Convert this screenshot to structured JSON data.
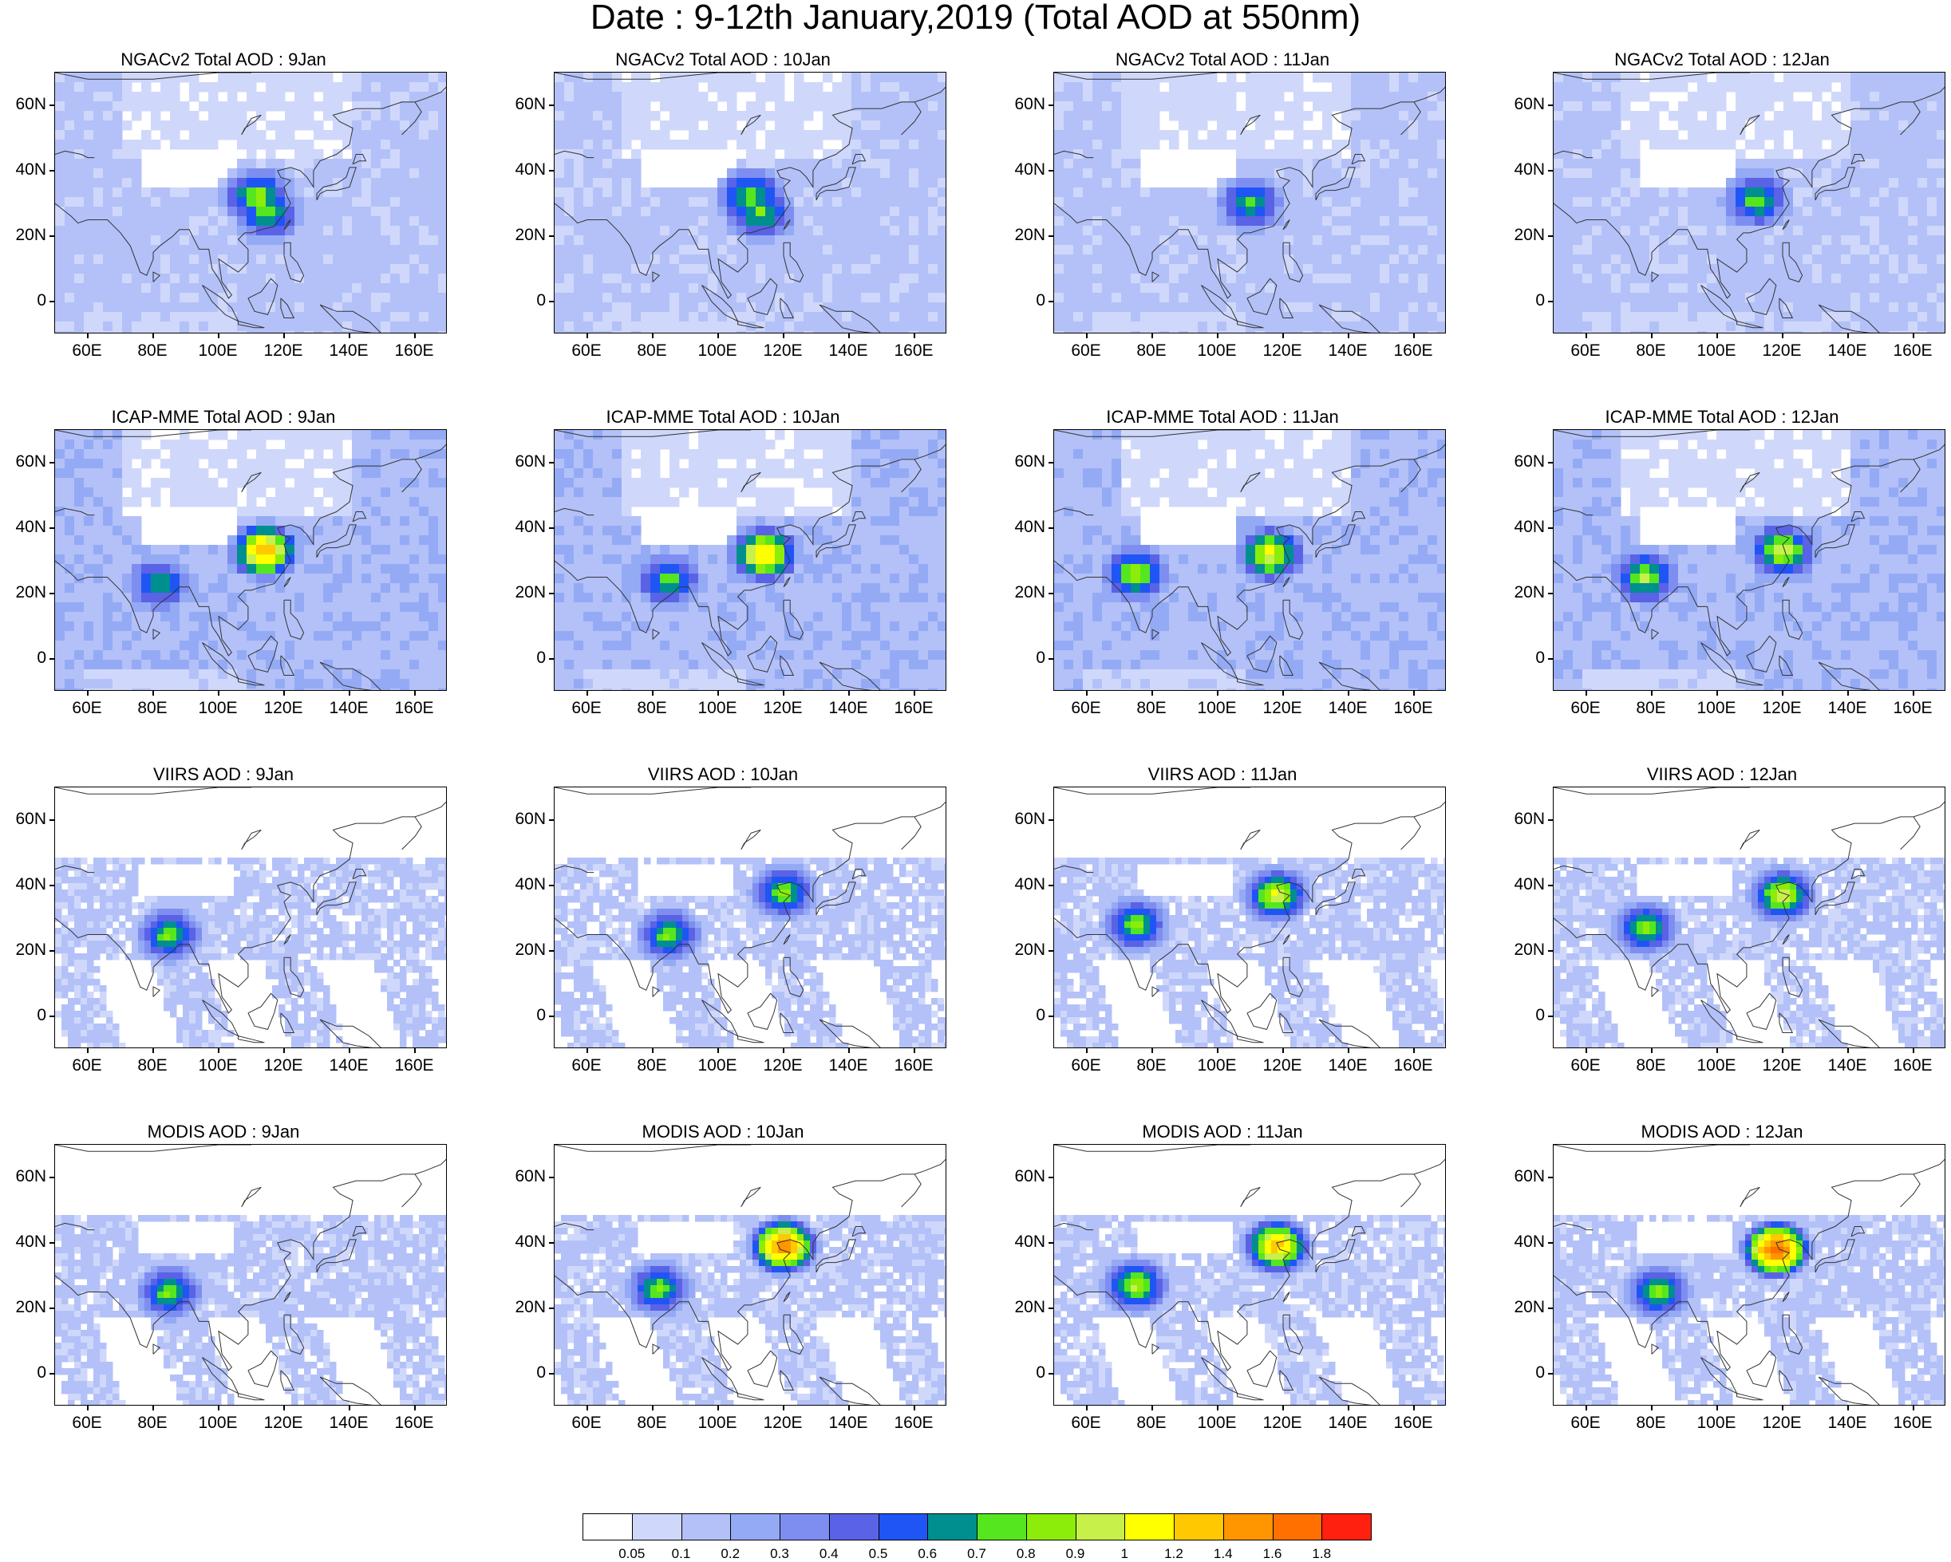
{
  "title": "Date : 9-12th January,2019 (Total AOD at 550nm)",
  "ytick_labels": [
    "60N",
    "40N",
    "20N",
    "0"
  ],
  "xtick_labels": [
    "60E",
    "80E",
    "100E",
    "120E",
    "140E",
    "160E"
  ],
  "panels": [
    {
      "title": "NGACv2 Total AOD : 9Jan",
      "dataset": "NGACv2",
      "day": "9Jan",
      "hotspots": [
        {
          "lon": 112,
          "lat": 32,
          "aod": 0.8
        },
        {
          "lon": 115,
          "lat": 27,
          "aod": 0.7
        }
      ]
    },
    {
      "title": "NGACv2 Total AOD : 10Jan",
      "dataset": "NGACv2",
      "day": "10Jan",
      "hotspots": [
        {
          "lon": 110,
          "lat": 32,
          "aod": 0.75
        },
        {
          "lon": 113,
          "lat": 27,
          "aod": 0.7
        }
      ]
    },
    {
      "title": "NGACv2 Total AOD : 11Jan",
      "dataset": "NGACv2",
      "day": "11Jan",
      "hotspots": [
        {
          "lon": 110,
          "lat": 30,
          "aod": 0.65
        }
      ]
    },
    {
      "title": "NGACv2 Total AOD : 12Jan",
      "dataset": "NGACv2",
      "day": "12Jan",
      "hotspots": [
        {
          "lon": 112,
          "lat": 31,
          "aod": 0.7
        }
      ]
    },
    {
      "title": "ICAP-MME Total AOD : 9Jan",
      "dataset": "ICAP-MME",
      "day": "9Jan",
      "hotspots": [
        {
          "lon": 114,
          "lat": 33,
          "aod": 1.3
        },
        {
          "lon": 82,
          "lat": 23,
          "aod": 0.6
        }
      ]
    },
    {
      "title": "ICAP-MME Total AOD : 10Jan",
      "dataset": "ICAP-MME",
      "day": "10Jan",
      "hotspots": [
        {
          "lon": 114,
          "lat": 32,
          "aod": 1.2
        },
        {
          "lon": 85,
          "lat": 24,
          "aod": 0.7
        }
      ]
    },
    {
      "title": "ICAP-MME Total AOD : 11Jan",
      "dataset": "ICAP-MME",
      "day": "11Jan",
      "hotspots": [
        {
          "lon": 116,
          "lat": 32,
          "aod": 1.0
        },
        {
          "lon": 75,
          "lat": 26,
          "aod": 0.8
        }
      ]
    },
    {
      "title": "ICAP-MME Total AOD : 12Jan",
      "dataset": "ICAP-MME",
      "day": "12Jan",
      "hotspots": [
        {
          "lon": 120,
          "lat": 33,
          "aod": 0.9
        },
        {
          "lon": 78,
          "lat": 25,
          "aod": 0.8
        }
      ]
    },
    {
      "title": "VIIRS AOD : 9Jan",
      "dataset": "VIIRS",
      "day": "9Jan",
      "hotspots": [
        {
          "lon": 85,
          "lat": 25,
          "aod": 0.8
        }
      ]
    },
    {
      "title": "VIIRS AOD : 10Jan",
      "dataset": "VIIRS",
      "day": "10Jan",
      "hotspots": [
        {
          "lon": 85,
          "lat": 25,
          "aod": 0.8
        },
        {
          "lon": 120,
          "lat": 38,
          "aod": 0.8
        }
      ]
    },
    {
      "title": "VIIRS AOD : 11Jan",
      "dataset": "VIIRS",
      "day": "11Jan",
      "hotspots": [
        {
          "lon": 75,
          "lat": 28,
          "aod": 0.8
        },
        {
          "lon": 118,
          "lat": 37,
          "aod": 1.0
        }
      ]
    },
    {
      "title": "VIIRS AOD : 12Jan",
      "dataset": "VIIRS",
      "day": "12Jan",
      "hotspots": [
        {
          "lon": 78,
          "lat": 27,
          "aod": 0.8
        },
        {
          "lon": 120,
          "lat": 37,
          "aod": 1.0
        }
      ]
    },
    {
      "title": "MODIS AOD : 9Jan",
      "dataset": "MODIS",
      "day": "9Jan",
      "hotspots": [
        {
          "lon": 85,
          "lat": 25,
          "aod": 0.8
        }
      ]
    },
    {
      "title": "MODIS AOD : 10Jan",
      "dataset": "MODIS",
      "day": "10Jan",
      "hotspots": [
        {
          "lon": 82,
          "lat": 26,
          "aod": 0.8
        },
        {
          "lon": 120,
          "lat": 39,
          "aod": 1.6
        }
      ]
    },
    {
      "title": "MODIS AOD : 11Jan",
      "dataset": "MODIS",
      "day": "11Jan",
      "hotspots": [
        {
          "lon": 75,
          "lat": 27,
          "aod": 0.9
        },
        {
          "lon": 118,
          "lat": 39,
          "aod": 1.3
        }
      ]
    },
    {
      "title": "MODIS AOD : 12Jan",
      "dataset": "MODIS",
      "day": "12Jan",
      "hotspots": [
        {
          "lon": 82,
          "lat": 25,
          "aod": 0.8
        },
        {
          "lon": 118,
          "lat": 38,
          "aod": 1.8
        }
      ]
    }
  ],
  "map_extent": {
    "lon_min": 50,
    "lon_max": 170,
    "lat_min": -10,
    "lat_max": 70
  },
  "colorbar": {
    "levels": [
      "0.05",
      "0.1",
      "0.2",
      "0.3",
      "0.4",
      "0.5",
      "0.6",
      "0.7",
      "0.8",
      "0.9",
      "1",
      "1.2",
      "1.4",
      "1.6",
      "1.8"
    ],
    "colors": [
      "#ffffff",
      "#cfd8fb",
      "#b3c1f8",
      "#94aaf5",
      "#7e8ef0",
      "#5a62e6",
      "#1f55f5",
      "#008f8f",
      "#55e620",
      "#8ced0a",
      "#c8f04a",
      "#ffff00",
      "#ffc800",
      "#ff9600",
      "#ff7000",
      "#ff2010"
    ]
  }
}
